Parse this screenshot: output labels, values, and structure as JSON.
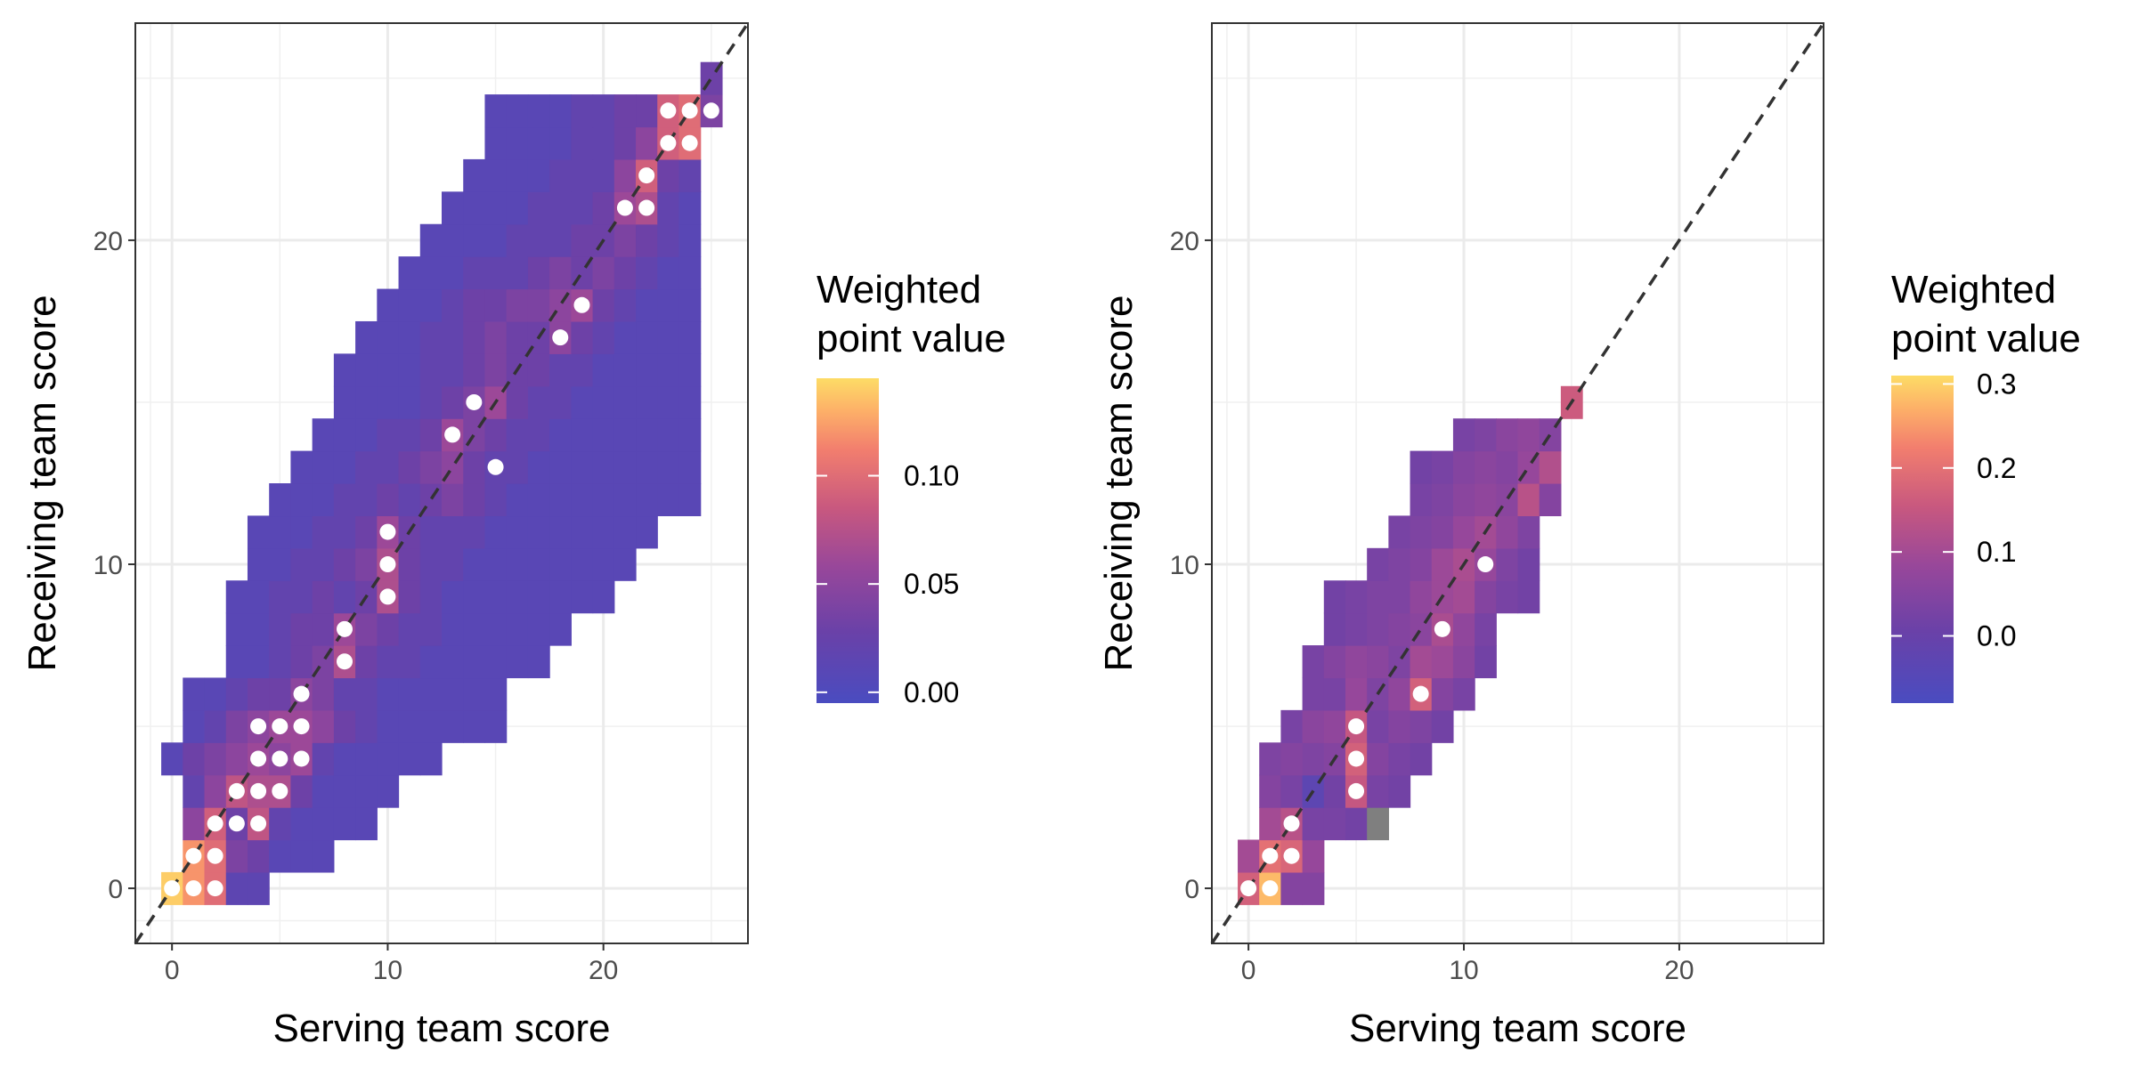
{
  "chart_data": [
    {
      "type": "heatmap",
      "xlabel": "Serving team score",
      "ylabel": "Receiving team score",
      "xlim": [
        -1.7,
        26.7
      ],
      "ylim": [
        -1.7,
        26.7
      ],
      "x_ticks": [
        0,
        10,
        20
      ],
      "y_ticks": [
        0,
        10,
        20
      ],
      "grid": true,
      "reference_line": "dashed y = x",
      "legend": {
        "title_lines": [
          "Weighted",
          "point value"
        ],
        "placement": "right",
        "min": -0.005,
        "max": 0.145,
        "ticks": [
          0.0,
          0.05,
          0.1
        ],
        "tick_labels": [
          "0.00",
          "0.05",
          "0.10"
        ]
      },
      "background_value": 0.012,
      "rows": [
        {
          "y": 0,
          "x0": 0,
          "x1": 4,
          "values": [
            0.14,
            0.12,
            0.1,
            0.015,
            0.015
          ]
        },
        {
          "y": 1,
          "x0": 1,
          "x1": 7,
          "values": [
            0.12,
            0.1,
            0.04,
            0.03,
            0.01,
            0.01,
            0.01
          ]
        },
        {
          "y": 2,
          "x0": 1,
          "x1": 9,
          "values": [
            0.05,
            0.09,
            0.03,
            0.08,
            0.02,
            0.01,
            0.01,
            0.01,
            0.01
          ]
        },
        {
          "y": 3,
          "x0": 1,
          "x1": 10,
          "values": [
            0.02,
            0.05,
            0.08,
            0.07,
            0.07,
            0.03,
            0.01,
            0.01,
            0.01,
            0.01
          ]
        },
        {
          "y": 4,
          "x0": 0,
          "x1": 12,
          "values": [
            0.01,
            0.03,
            0.04,
            0.05,
            0.06,
            0.05,
            0.06,
            0.02,
            0.01,
            0.01,
            0.01,
            0.01,
            0.01
          ]
        },
        {
          "y": 5,
          "x0": 1,
          "x1": 15,
          "values": [
            0.01,
            0.02,
            0.04,
            0.05,
            0.06,
            0.06,
            0.05,
            0.03,
            0.02,
            0.01,
            0.01,
            0.01,
            0.01,
            0.01,
            0.01
          ]
        },
        {
          "y": 6,
          "x0": 1,
          "x1": 15,
          "values": [
            0.01,
            0.01,
            0.02,
            0.03,
            0.03,
            0.05,
            0.04,
            0.02,
            0.02,
            0.01,
            0.01,
            0.01,
            0.01,
            0.01,
            0.01
          ]
        },
        {
          "y": 7,
          "x0": 3,
          "x1": 17,
          "values": [
            0.01,
            0.01,
            0.02,
            0.03,
            0.04,
            0.07,
            0.03,
            0.02,
            0.02,
            0.01,
            0.01,
            0.01,
            0.01,
            0.01,
            0.01
          ]
        },
        {
          "y": 8,
          "x0": 3,
          "x1": 18,
          "values": [
            0.01,
            0.01,
            0.02,
            0.03,
            0.03,
            0.06,
            0.04,
            0.03,
            0.02,
            0.02,
            0.01,
            0.01,
            0.01,
            0.01,
            0.01,
            0.01
          ]
        },
        {
          "y": 9,
          "x0": 3,
          "x1": 20,
          "values": [
            0.01,
            0.01,
            0.02,
            0.02,
            0.03,
            0.02,
            0.03,
            0.07,
            0.03,
            0.02,
            0.01,
            0.01,
            0.01,
            0.01,
            0.01,
            0.01,
            0.01,
            0.01
          ]
        },
        {
          "y": 10,
          "x0": 4,
          "x1": 21,
          "values": [
            0.01,
            0.01,
            0.02,
            0.02,
            0.03,
            0.04,
            0.07,
            0.03,
            0.02,
            0.02,
            0.01,
            0.01,
            0.01,
            0.01,
            0.01,
            0.01,
            0.01,
            0.01
          ]
        },
        {
          "y": 11,
          "x0": 4,
          "x1": 22,
          "values": [
            0.01,
            0.01,
            0.01,
            0.02,
            0.02,
            0.03,
            0.06,
            0.03,
            0.02,
            0.02,
            0.02,
            0.01,
            0.01,
            0.01,
            0.01,
            0.01,
            0.01,
            0.01,
            0.01
          ]
        },
        {
          "y": 12,
          "x0": 5,
          "x1": 24,
          "values": [
            0.01,
            0.01,
            0.01,
            0.02,
            0.02,
            0.03,
            0.02,
            0.03,
            0.04,
            0.03,
            0.02,
            0.01,
            0.01,
            0.01,
            0.01,
            0.01,
            0.01,
            0.01,
            0.01,
            0.01
          ]
        },
        {
          "y": 13,
          "x0": 6,
          "x1": 24,
          "values": [
            0.01,
            0.01,
            0.01,
            0.02,
            0.02,
            0.03,
            0.04,
            0.05,
            0.03,
            0.02,
            0.02,
            0.01,
            0.01,
            0.01,
            0.01,
            0.01,
            0.01,
            0.01,
            0.01
          ]
        },
        {
          "y": 14,
          "x0": 7,
          "x1": 24,
          "values": [
            0.01,
            0.01,
            0.01,
            0.02,
            0.02,
            0.03,
            0.06,
            0.04,
            0.03,
            0.02,
            0.02,
            0.01,
            0.01,
            0.01,
            0.01,
            0.01,
            0.01,
            0.01
          ]
        },
        {
          "y": 15,
          "x0": 8,
          "x1": 24,
          "values": [
            0.01,
            0.01,
            0.01,
            0.01,
            0.02,
            0.03,
            0.04,
            0.06,
            0.03,
            0.02,
            0.02,
            0.01,
            0.01,
            0.01,
            0.01,
            0.01,
            0.01
          ]
        },
        {
          "y": 16,
          "x0": 8,
          "x1": 24,
          "values": [
            0.01,
            0.01,
            0.01,
            0.01,
            0.02,
            0.02,
            0.03,
            0.04,
            0.03,
            0.03,
            0.02,
            0.02,
            0.01,
            0.01,
            0.01,
            0.01,
            0.01
          ]
        },
        {
          "y": 17,
          "x0": 9,
          "x1": 24,
          "values": [
            0.01,
            0.01,
            0.01,
            0.02,
            0.02,
            0.03,
            0.04,
            0.03,
            0.03,
            0.05,
            0.03,
            0.02,
            0.01,
            0.01,
            0.01,
            0.01
          ]
        },
        {
          "y": 18,
          "x0": 10,
          "x1": 24,
          "values": [
            0.01,
            0.01,
            0.01,
            0.02,
            0.03,
            0.03,
            0.04,
            0.04,
            0.05,
            0.06,
            0.03,
            0.02,
            0.01,
            0.01,
            0.01
          ]
        },
        {
          "y": 19,
          "x0": 11,
          "x1": 24,
          "values": [
            0.01,
            0.01,
            0.01,
            0.02,
            0.02,
            0.02,
            0.03,
            0.04,
            0.03,
            0.04,
            0.03,
            0.02,
            0.01,
            0.01
          ]
        },
        {
          "y": 20,
          "x0": 12,
          "x1": 24,
          "values": [
            0.01,
            0.01,
            0.01,
            0.01,
            0.02,
            0.02,
            0.02,
            0.03,
            0.03,
            0.04,
            0.03,
            0.02,
            0.01
          ]
        },
        {
          "y": 21,
          "x0": 13,
          "x1": 24,
          "values": [
            0.01,
            0.01,
            0.01,
            0.01,
            0.02,
            0.02,
            0.02,
            0.03,
            0.06,
            0.07,
            0.02,
            0.01
          ]
        },
        {
          "y": 22,
          "x0": 14,
          "x1": 24,
          "values": [
            0.01,
            0.01,
            0.01,
            0.01,
            0.02,
            0.02,
            0.02,
            0.05,
            0.09,
            0.03,
            0.02
          ]
        },
        {
          "y": 23,
          "x0": 15,
          "x1": 24,
          "values": [
            0.01,
            0.01,
            0.01,
            0.01,
            0.02,
            0.02,
            0.03,
            0.05,
            0.09,
            0.1,
            0.04
          ]
        },
        {
          "y": 24,
          "x0": 15,
          "x1": 25,
          "values": [
            0.01,
            0.01,
            0.01,
            0.01,
            0.02,
            0.02,
            0.03,
            0.03,
            0.09,
            0.1,
            0.04
          ]
        },
        {
          "y": 25,
          "x0": 25,
          "x1": 25,
          "values": [
            0.03
          ]
        }
      ],
      "points": [
        [
          0,
          0
        ],
        [
          1,
          0
        ],
        [
          2,
          0
        ],
        [
          1,
          1
        ],
        [
          2,
          1
        ],
        [
          2,
          2
        ],
        [
          3,
          2
        ],
        [
          4,
          2
        ],
        [
          3,
          3
        ],
        [
          4,
          3
        ],
        [
          5,
          3
        ],
        [
          4,
          4
        ],
        [
          5,
          4
        ],
        [
          6,
          4
        ],
        [
          4,
          5
        ],
        [
          5,
          5
        ],
        [
          6,
          5
        ],
        [
          6,
          6
        ],
        [
          8,
          7
        ],
        [
          8,
          8
        ],
        [
          10,
          9
        ],
        [
          10,
          10
        ],
        [
          10,
          11
        ],
        [
          15,
          13
        ],
        [
          13,
          14
        ],
        [
          14,
          15
        ],
        [
          18,
          17
        ],
        [
          19,
          18
        ],
        [
          21,
          21
        ],
        [
          22,
          21
        ],
        [
          22,
          22
        ],
        [
          23,
          23
        ],
        [
          24,
          23
        ],
        [
          23,
          24
        ],
        [
          24,
          24
        ],
        [
          25,
          24
        ]
      ]
    },
    {
      "type": "heatmap",
      "xlabel": "Serving team score",
      "ylabel": "Receiving team score",
      "xlim": [
        -1.7,
        26.7
      ],
      "ylim": [
        -1.7,
        26.7
      ],
      "x_ticks": [
        0,
        10,
        20
      ],
      "y_ticks": [
        0,
        10,
        20
      ],
      "grid": true,
      "reference_line": "dashed y = x",
      "legend": {
        "title_lines": [
          "Weighted",
          "point value"
        ],
        "placement": "right",
        "min": -0.08,
        "max": 0.31,
        "ticks": [
          0.0,
          0.1,
          0.2,
          0.3
        ],
        "tick_labels": [
          "0.0",
          "0.1",
          "0.2",
          "0.3"
        ]
      },
      "na_color": "#7f7f7f",
      "background_value": 0.0,
      "rows": [
        {
          "y": 0,
          "x0": 0,
          "x1": 3,
          "values": [
            0.17,
            0.28,
            0.05,
            0.05
          ]
        },
        {
          "y": 1,
          "x0": 0,
          "x1": 3,
          "values": [
            0.1,
            0.2,
            0.18,
            0.08
          ]
        },
        {
          "y": 2,
          "x0": 1,
          "x1": 6,
          "values": [
            0.1,
            0.13,
            0.03,
            0.03,
            0.02,
            null
          ]
        },
        {
          "y": 3,
          "x0": 1,
          "x1": 7,
          "values": [
            0.05,
            0.03,
            -0.03,
            0.02,
            0.15,
            0.03,
            0.02
          ]
        },
        {
          "y": 4,
          "x0": 1,
          "x1": 8,
          "values": [
            0.04,
            0.05,
            0.04,
            0.05,
            0.17,
            0.05,
            0.03,
            0.02
          ]
        },
        {
          "y": 5,
          "x0": 2,
          "x1": 9,
          "values": [
            0.03,
            0.06,
            0.07,
            0.15,
            0.03,
            0.05,
            0.04,
            0.02
          ]
        },
        {
          "y": 6,
          "x0": 3,
          "x1": 10,
          "values": [
            0.03,
            0.03,
            0.08,
            0.04,
            0.07,
            0.17,
            0.05,
            0.03
          ]
        },
        {
          "y": 7,
          "x0": 3,
          "x1": 11,
          "values": [
            0.03,
            0.05,
            0.07,
            0.06,
            0.04,
            0.1,
            0.09,
            0.06,
            0.02
          ]
        },
        {
          "y": 8,
          "x0": 4,
          "x1": 11,
          "values": [
            0.02,
            0.03,
            0.04,
            0.05,
            0.06,
            0.11,
            0.07,
            0.03
          ]
        },
        {
          "y": 9,
          "x0": 4,
          "x1": 13,
          "values": [
            0.02,
            0.03,
            0.04,
            0.04,
            0.07,
            0.09,
            0.1,
            0.05,
            0.03,
            0.02
          ]
        },
        {
          "y": 10,
          "x0": 6,
          "x1": 13,
          "values": [
            0.03,
            0.04,
            0.05,
            0.09,
            0.11,
            0.08,
            0.04,
            0.02
          ]
        },
        {
          "y": 11,
          "x0": 7,
          "x1": 13,
          "values": [
            0.03,
            0.04,
            0.05,
            0.08,
            0.1,
            0.07,
            0.04
          ]
        },
        {
          "y": 12,
          "x0": 8,
          "x1": 14,
          "values": [
            0.03,
            0.04,
            0.06,
            0.07,
            0.06,
            0.13,
            0.05
          ]
        },
        {
          "y": 13,
          "x0": 8,
          "x1": 14,
          "values": [
            0.02,
            0.03,
            0.05,
            0.06,
            0.05,
            0.08,
            0.12
          ]
        },
        {
          "y": 14,
          "x0": 10,
          "x1": 14,
          "values": [
            0.03,
            0.04,
            0.06,
            0.07,
            0.05
          ]
        },
        {
          "y": 15,
          "x0": 15,
          "x1": 15,
          "values": [
            0.16
          ]
        }
      ],
      "points": [
        [
          0,
          0
        ],
        [
          1,
          0
        ],
        [
          1,
          1
        ],
        [
          2,
          1
        ],
        [
          2,
          2
        ],
        [
          5,
          3
        ],
        [
          5,
          4
        ],
        [
          5,
          5
        ],
        [
          8,
          6
        ],
        [
          9,
          8
        ],
        [
          11,
          10
        ]
      ]
    }
  ]
}
